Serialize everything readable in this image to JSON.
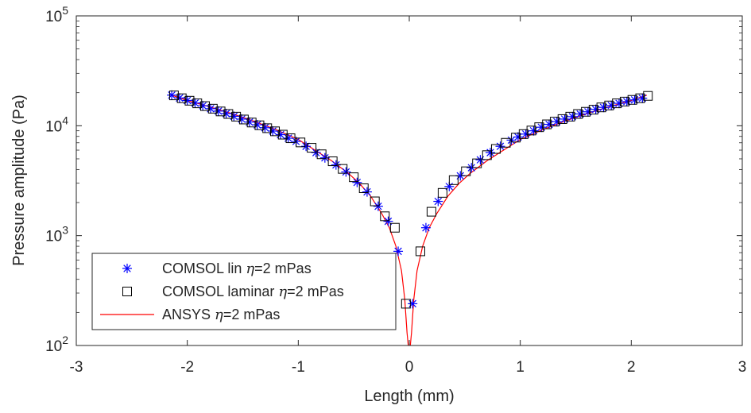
{
  "chart_data": {
    "type": "scatter",
    "xlabel": "Length (mm)",
    "ylabel": "Pressure amplitude (Pa)",
    "xlim": [
      -3,
      3
    ],
    "ylim": [
      100,
      100000
    ],
    "yscale": "log",
    "grid": false,
    "box": true,
    "legend_position": "bottom-left",
    "x_ticks": [
      {
        "value": -3,
        "label": "-3"
      },
      {
        "value": -2,
        "label": "-2"
      },
      {
        "value": -1,
        "label": "-1"
      },
      {
        "value": 0,
        "label": "0"
      },
      {
        "value": 1,
        "label": "1"
      },
      {
        "value": 2,
        "label": "2"
      },
      {
        "value": 3,
        "label": "3"
      }
    ],
    "y_ticks": [
      {
        "value": 100,
        "base": "10",
        "exp": "2"
      },
      {
        "value": 1000,
        "base": "10",
        "exp": "3"
      },
      {
        "value": 10000,
        "base": "10",
        "exp": "4"
      },
      {
        "value": 100000,
        "base": "10",
        "exp": "5"
      }
    ],
    "series": [
      {
        "name": "COMSOL lin η=2 mPas",
        "legend_prefix": "COMSOL lin ",
        "legend_symbol": "η",
        "legend_suffix": "=2 mPas",
        "marker": "asterisk",
        "color": "#0000ff",
        "points": [
          [
            -2.14,
            19000
          ],
          [
            -2.07,
            17900
          ],
          [
            -2.0,
            17000
          ],
          [
            -1.93,
            16100
          ],
          [
            -1.86,
            15200
          ],
          [
            -1.79,
            14300
          ],
          [
            -1.72,
            13600
          ],
          [
            -1.65,
            12900
          ],
          [
            -1.58,
            12200
          ],
          [
            -1.51,
            11500
          ],
          [
            -1.44,
            10800
          ],
          [
            -1.37,
            10200
          ],
          [
            -1.3,
            9600
          ],
          [
            -1.23,
            8950
          ],
          [
            -1.16,
            8300
          ],
          [
            -1.09,
            7700
          ],
          [
            -1.02,
            7200
          ],
          [
            -0.93,
            6500
          ],
          [
            -0.84,
            5700
          ],
          [
            -0.76,
            5100
          ],
          [
            -0.66,
            4400
          ],
          [
            -0.57,
            3800
          ],
          [
            -0.47,
            3050
          ],
          [
            -0.38,
            2500
          ],
          [
            -0.28,
            1850
          ],
          [
            -0.19,
            1350
          ],
          [
            -0.1,
            720
          ],
          [
            0.03,
            240
          ],
          [
            0.15,
            1180
          ],
          [
            0.26,
            2050
          ],
          [
            0.36,
            2800
          ],
          [
            0.46,
            3500
          ],
          [
            0.56,
            4150
          ],
          [
            0.64,
            4900
          ],
          [
            0.73,
            5700
          ],
          [
            0.82,
            6500
          ],
          [
            0.92,
            7400
          ],
          [
            0.98,
            7900
          ],
          [
            1.05,
            8400
          ],
          [
            1.12,
            9000
          ],
          [
            1.19,
            9700
          ],
          [
            1.26,
            10300
          ],
          [
            1.33,
            10900
          ],
          [
            1.4,
            11500
          ],
          [
            1.47,
            12100
          ],
          [
            1.54,
            12800
          ],
          [
            1.61,
            13400
          ],
          [
            1.68,
            14100
          ],
          [
            1.75,
            14700
          ],
          [
            1.82,
            15300
          ],
          [
            1.89,
            16000
          ],
          [
            1.96,
            16600
          ],
          [
            2.03,
            17200
          ],
          [
            2.1,
            17800
          ]
        ]
      },
      {
        "name": "COMSOL laminar η=2 mPas",
        "legend_prefix": "COMSOL laminar ",
        "legend_symbol": "η",
        "legend_suffix": "=2 mPas",
        "marker": "square",
        "color": "#000000",
        "points": [
          [
            -2.12,
            18900
          ],
          [
            -2.05,
            17800
          ],
          [
            -1.98,
            16900
          ],
          [
            -1.91,
            16000
          ],
          [
            -1.84,
            15100
          ],
          [
            -1.77,
            14300
          ],
          [
            -1.7,
            13500
          ],
          [
            -1.63,
            12800
          ],
          [
            -1.56,
            12100
          ],
          [
            -1.49,
            11400
          ],
          [
            -1.42,
            10700
          ],
          [
            -1.35,
            10100
          ],
          [
            -1.28,
            9500
          ],
          [
            -1.21,
            8900
          ],
          [
            -1.14,
            8300
          ],
          [
            -1.07,
            7700
          ],
          [
            -0.98,
            7050
          ],
          [
            -0.88,
            6300
          ],
          [
            -0.79,
            5500
          ],
          [
            -0.69,
            4750
          ],
          [
            -0.6,
            4050
          ],
          [
            -0.5,
            3400
          ],
          [
            -0.41,
            2700
          ],
          [
            -0.31,
            2050
          ],
          [
            -0.22,
            1500
          ],
          [
            -0.13,
            1180
          ],
          [
            -0.03,
            240
          ],
          [
            0.1,
            720
          ],
          [
            0.2,
            1650
          ],
          [
            0.3,
            2450
          ],
          [
            0.4,
            3200
          ],
          [
            0.51,
            3850
          ],
          [
            0.61,
            4550
          ],
          [
            0.7,
            5400
          ],
          [
            0.78,
            6150
          ],
          [
            0.87,
            7000
          ],
          [
            0.96,
            7800
          ],
          [
            1.03,
            8400
          ],
          [
            1.1,
            9050
          ],
          [
            1.17,
            9700
          ],
          [
            1.24,
            10300
          ],
          [
            1.31,
            10900
          ],
          [
            1.38,
            11500
          ],
          [
            1.45,
            12100
          ],
          [
            1.52,
            12800
          ],
          [
            1.59,
            13400
          ],
          [
            1.66,
            14000
          ],
          [
            1.73,
            14700
          ],
          [
            1.8,
            15300
          ],
          [
            1.87,
            16000
          ],
          [
            1.94,
            16600
          ],
          [
            2.01,
            17200
          ],
          [
            2.08,
            17800
          ],
          [
            2.15,
            18700
          ]
        ]
      },
      {
        "name": "ANSYS η=2 mPas",
        "legend_prefix": "ANSYS ",
        "legend_symbol": "η",
        "legend_suffix": "=2 mPas",
        "marker": "line",
        "color": "#ff0000",
        "points": [
          [
            -2.14,
            19000
          ],
          [
            -2.0,
            17000
          ],
          [
            -1.8,
            14900
          ],
          [
            -1.6,
            12900
          ],
          [
            -1.4,
            11000
          ],
          [
            -1.2,
            9200
          ],
          [
            -1.0,
            7500
          ],
          [
            -0.85,
            6000
          ],
          [
            -0.7,
            4800
          ],
          [
            -0.55,
            3700
          ],
          [
            -0.45,
            3000
          ],
          [
            -0.35,
            2300
          ],
          [
            -0.25,
            1600
          ],
          [
            -0.18,
            1180
          ],
          [
            -0.12,
            800
          ],
          [
            -0.07,
            480
          ],
          [
            -0.04,
            260
          ],
          [
            -0.02,
            130
          ],
          [
            0.0,
            80
          ],
          [
            0.02,
            130
          ],
          [
            0.04,
            260
          ],
          [
            0.07,
            480
          ],
          [
            0.12,
            800
          ],
          [
            0.18,
            1180
          ],
          [
            0.25,
            1600
          ],
          [
            0.35,
            2300
          ],
          [
            0.45,
            3000
          ],
          [
            0.55,
            3700
          ],
          [
            0.7,
            4800
          ],
          [
            0.85,
            6000
          ],
          [
            1.0,
            7500
          ],
          [
            1.2,
            9200
          ],
          [
            1.4,
            11000
          ],
          [
            1.6,
            12900
          ],
          [
            1.8,
            14900
          ],
          [
            2.0,
            17000
          ],
          [
            2.14,
            19000
          ]
        ]
      }
    ]
  }
}
